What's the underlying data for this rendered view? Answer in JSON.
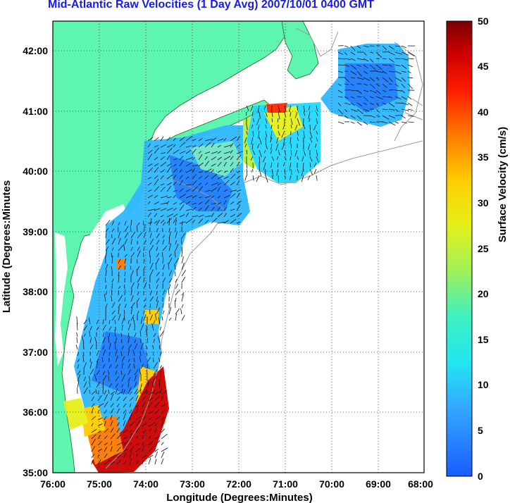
{
  "title": "Mid-Atlantic Raw Velocities (1 Day Avg) 2007/10/01 0400 GMT",
  "xlabel": "Longitude (Degrees:Minutes)",
  "ylabel": "Latitude (Degrees:Minutes",
  "x_ticks": [
    "76:00",
    "75:00",
    "74:00",
    "73:00",
    "72:00",
    "71:00",
    "70:00",
    "69:00",
    "68:00"
  ],
  "y_ticks": [
    "42:00",
    "41:00",
    "40:00",
    "39:00",
    "38:00",
    "37:00",
    "36:00",
    "35:00"
  ],
  "colorbar": {
    "label": "Surface Velocity (cm/s)",
    "ticks": [
      "0",
      "5",
      "10",
      "15",
      "20",
      "25",
      "30",
      "35",
      "40",
      "45",
      "50"
    ],
    "range": [
      0,
      50
    ]
  },
  "colors": {
    "land": "#5ef5b0",
    "title": "#1a1ae6",
    "bathymetry": "#9a9a9a"
  },
  "chart_data": {
    "type": "heatmap",
    "x_range_deg": [
      -76,
      -68
    ],
    "y_range_deg": [
      35,
      42.5
    ],
    "value_range": [
      0,
      50
    ],
    "units": "cm/s"
  }
}
